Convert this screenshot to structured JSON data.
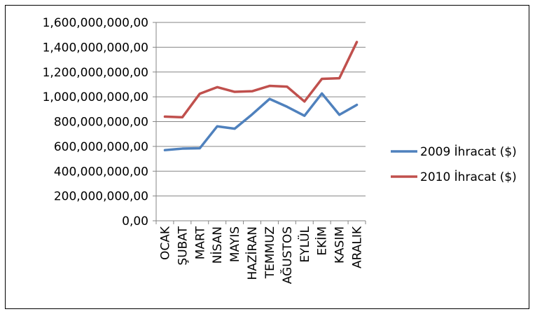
{
  "chart_data": {
    "type": "line",
    "categories": [
      "OCAK",
      "ŞUBAT",
      "MART",
      "NİSAN",
      "MAYIS",
      "HAZİRAN",
      "TEMMUZ",
      "AĞUSTOS",
      "EYLÜL",
      "EKİM",
      "KASIM",
      "ARALIK"
    ],
    "series": [
      {
        "name": "2009 İhracat ($)",
        "color": "#4f81bd",
        "values": [
          570000000,
          582000000,
          585000000,
          762000000,
          743000000,
          858000000,
          983000000,
          920000000,
          847000000,
          1027000000,
          855000000,
          935000000
        ]
      },
      {
        "name": "2010 İhracat ($)",
        "color": "#c0504d",
        "values": [
          840000000,
          835000000,
          1025000000,
          1078000000,
          1040000000,
          1045000000,
          1088000000,
          1082000000,
          962000000,
          1145000000,
          1150000000,
          1442000000
        ]
      }
    ],
    "ylim": [
      0,
      1600000000
    ],
    "yticks": [
      "0,00",
      "200,000,000,00",
      "400,000,000,00",
      "600,000,000,00",
      "800,000,000,00",
      "1,000,000,000,00",
      "1,200,000,000,00",
      "1,400,000,000,00",
      "1,600,000,000,00"
    ],
    "grid": true,
    "legend": "right"
  }
}
